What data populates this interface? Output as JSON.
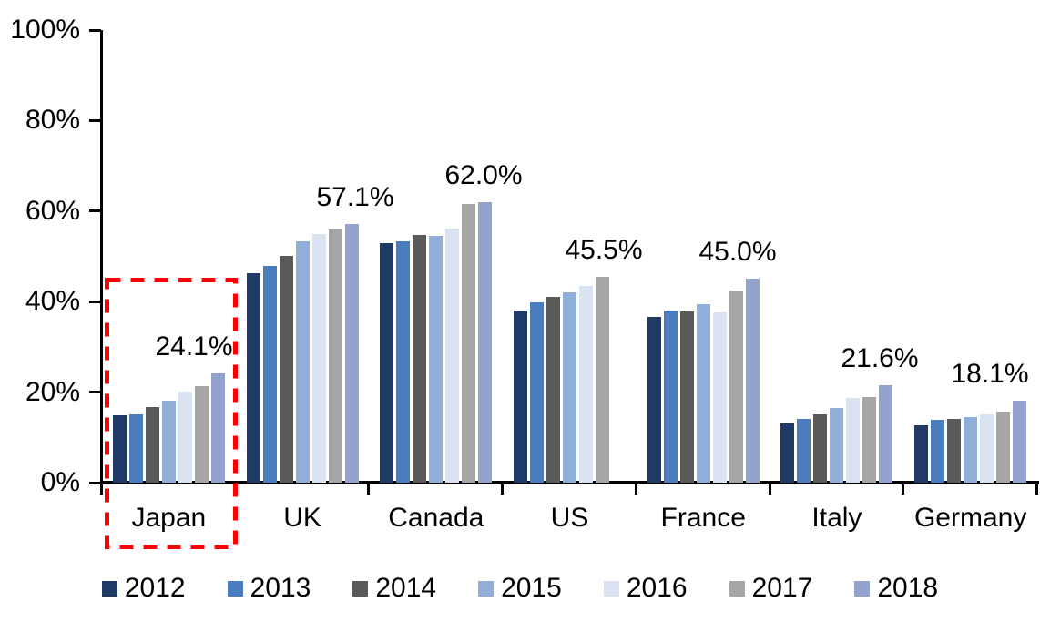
{
  "chart_data": {
    "type": "bar",
    "title": "",
    "xlabel": "",
    "ylabel": "",
    "ylim": [
      0,
      100
    ],
    "grid": false,
    "legend_position": "bottom",
    "yticks": [
      {
        "label": "0%",
        "value": 0
      },
      {
        "label": "20%",
        "value": 20
      },
      {
        "label": "40%",
        "value": 40
      },
      {
        "label": "60%",
        "value": 60
      },
      {
        "label": "80%",
        "value": 80
      },
      {
        "label": "100%",
        "value": 100
      }
    ],
    "categories": [
      "Japan",
      "UK",
      "Canada",
      "US",
      "France",
      "Italy",
      "Germany"
    ],
    "series": [
      {
        "name": "2012",
        "color": "#1F3A64",
        "values": [
          14.8,
          46.3,
          52.9,
          38.0,
          36.7,
          13.1,
          12.6
        ]
      },
      {
        "name": "2013",
        "color": "#4A7CBE",
        "values": [
          15.1,
          47.9,
          53.4,
          39.8,
          38.0,
          14.0,
          13.8
        ]
      },
      {
        "name": "2014",
        "color": "#5A5A5A",
        "values": [
          16.7,
          50.1,
          54.8,
          41.0,
          37.9,
          15.0,
          14.1
        ]
      },
      {
        "name": "2015",
        "color": "#90AFD8",
        "values": [
          18.1,
          53.4,
          54.5,
          42.0,
          39.5,
          16.5,
          14.4
        ]
      },
      {
        "name": "2016",
        "color": "#DAE3F1",
        "values": [
          20.2,
          54.9,
          56.1,
          43.5,
          37.6,
          18.8,
          15.0
        ]
      },
      {
        "name": "2017",
        "color": "#A6A6A6",
        "values": [
          21.3,
          55.9,
          61.5,
          45.5,
          42.5,
          19.0,
          15.6
        ]
      },
      {
        "name": "2018",
        "color": "#93A3CE",
        "values": [
          24.1,
          57.1,
          62.0,
          null,
          45.0,
          21.6,
          18.1
        ]
      }
    ],
    "data_labels": [
      {
        "category": "Japan",
        "series": "2018",
        "text": "24.1%"
      },
      {
        "category": "UK",
        "series": "2018",
        "text": "57.1%"
      },
      {
        "category": "Canada",
        "series": "2018",
        "text": "62.0%"
      },
      {
        "category": "US",
        "series": "2017",
        "text": "45.5%"
      },
      {
        "category": "France",
        "series": "2018",
        "text": "45.0%"
      },
      {
        "category": "Italy",
        "series": "2018",
        "text": "21.6%"
      },
      {
        "category": "Germany",
        "series": "2018",
        "text": "18.1%"
      }
    ],
    "highlight": {
      "category": "Japan",
      "style": "dashed-rectangle",
      "color": "#FF0000"
    }
  }
}
